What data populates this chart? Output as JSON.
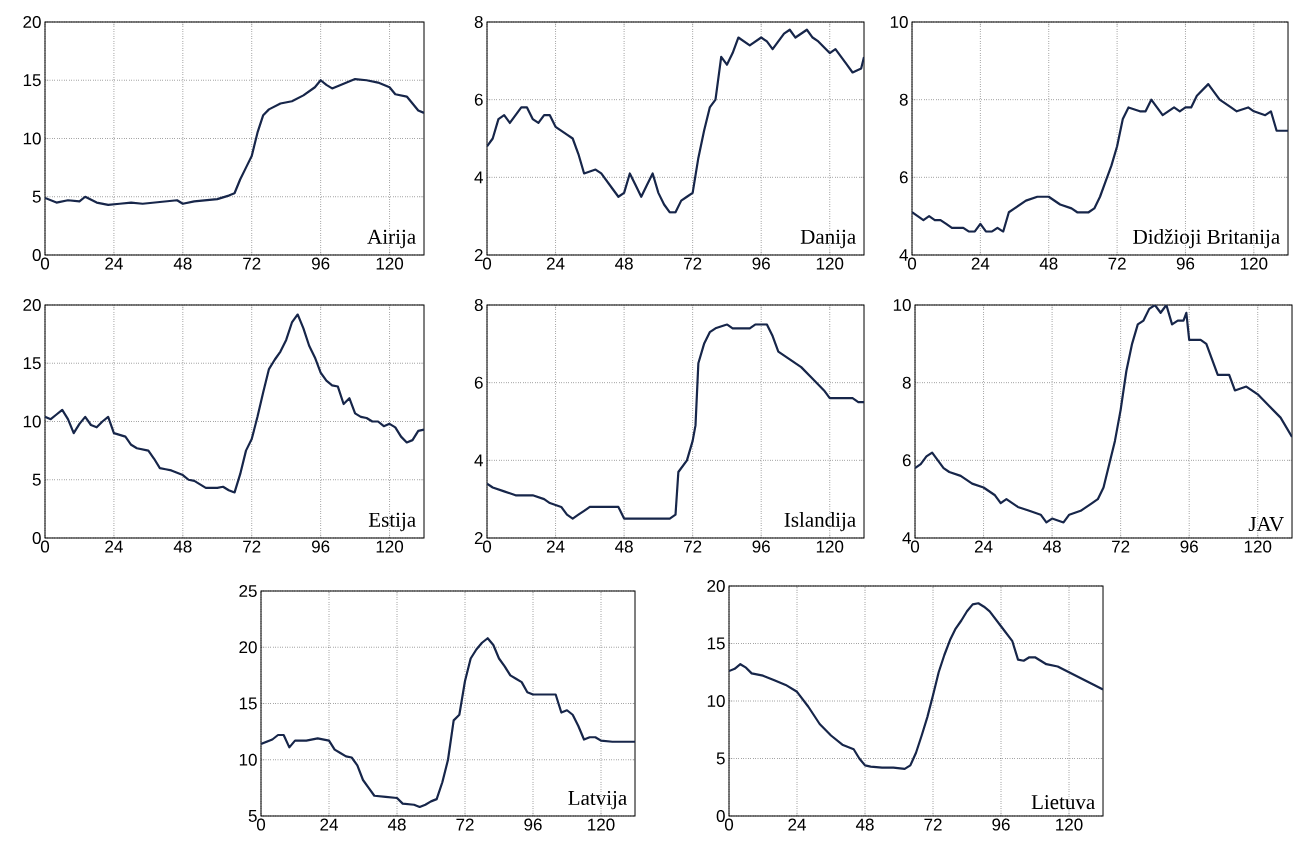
{
  "chart_data": [
    {
      "type": "line",
      "annotations": [
        "Airija"
      ],
      "color": "#17264a",
      "grid": true,
      "xlim": [
        0,
        132
      ],
      "xticks": [
        0,
        24,
        48,
        72,
        96,
        120
      ],
      "ylim": [
        0,
        20
      ],
      "yticks": [
        0,
        5,
        10,
        15,
        20
      ],
      "x": [
        0,
        4,
        8,
        12,
        14,
        18,
        22,
        26,
        30,
        34,
        38,
        42,
        46,
        48,
        52,
        56,
        60,
        64,
        66,
        68,
        70,
        72,
        74,
        76,
        78,
        82,
        86,
        90,
        94,
        96,
        98,
        100,
        104,
        108,
        112,
        116,
        120,
        122,
        126,
        128,
        130,
        132
      ],
      "values": [
        4.9,
        4.5,
        4.7,
        4.6,
        5.0,
        4.5,
        4.3,
        4.4,
        4.5,
        4.4,
        4.5,
        4.6,
        4.7,
        4.4,
        4.6,
        4.7,
        4.8,
        5.1,
        5.3,
        6.5,
        7.5,
        8.5,
        10.5,
        12,
        12.5,
        13,
        13.2,
        13.7,
        14.4,
        15,
        14.6,
        14.3,
        14.7,
        15.1,
        15,
        14.8,
        14.4,
        13.8,
        13.6,
        13,
        12.4,
        12.2
      ]
    },
    {
      "type": "line",
      "annotations": [
        "Danija"
      ],
      "color": "#17264a",
      "grid": true,
      "xlim": [
        0,
        132
      ],
      "xticks": [
        0,
        24,
        48,
        72,
        96,
        120
      ],
      "ylim": [
        2,
        8
      ],
      "yticks": [
        2,
        4,
        6,
        8
      ],
      "x": [
        0,
        2,
        4,
        6,
        8,
        10,
        12,
        14,
        16,
        18,
        20,
        22,
        24,
        28,
        30,
        32,
        34,
        38,
        40,
        44,
        46,
        48,
        50,
        52,
        54,
        56,
        58,
        60,
        62,
        64,
        66,
        68,
        70,
        72,
        74,
        76,
        78,
        80,
        82,
        84,
        86,
        88,
        92,
        96,
        98,
        100,
        104,
        106,
        108,
        112,
        114,
        116,
        120,
        122,
        126,
        128,
        131,
        132
      ],
      "values": [
        4.8,
        5.0,
        5.5,
        5.6,
        5.4,
        5.6,
        5.8,
        5.8,
        5.5,
        5.4,
        5.6,
        5.6,
        5.3,
        5.1,
        5.0,
        4.6,
        4.1,
        4.2,
        4.1,
        3.7,
        3.5,
        3.6,
        4.1,
        3.8,
        3.5,
        3.8,
        4.1,
        3.6,
        3.3,
        3.1,
        3.1,
        3.4,
        3.5,
        3.6,
        4.5,
        5.2,
        5.8,
        6.0,
        7.1,
        6.9,
        7.2,
        7.6,
        7.4,
        7.6,
        7.5,
        7.3,
        7.7,
        7.8,
        7.6,
        7.8,
        7.6,
        7.5,
        7.2,
        7.3,
        6.9,
        6.7,
        6.8,
        7.1
      ]
    },
    {
      "type": "line",
      "annotations": [
        "Didžioji Britanija"
      ],
      "color": "#17264a",
      "grid": true,
      "xlim": [
        0,
        132
      ],
      "xticks": [
        0,
        24,
        48,
        72,
        96,
        120
      ],
      "ylim": [
        4,
        10
      ],
      "yticks": [
        4,
        6,
        8,
        10
      ],
      "x": [
        0,
        2,
        4,
        6,
        8,
        10,
        12,
        14,
        18,
        20,
        22,
        24,
        26,
        28,
        30,
        32,
        34,
        36,
        40,
        44,
        48,
        52,
        56,
        58,
        62,
        64,
        66,
        68,
        70,
        72,
        74,
        76,
        80,
        82,
        84,
        86,
        88,
        90,
        92,
        94,
        96,
        98,
        100,
        104,
        106,
        108,
        112,
        114,
        118,
        120,
        124,
        126,
        128,
        132
      ],
      "values": [
        5.1,
        5.0,
        4.9,
        5.0,
        4.9,
        4.9,
        4.8,
        4.7,
        4.7,
        4.6,
        4.6,
        4.8,
        4.6,
        4.6,
        4.7,
        4.6,
        5.1,
        5.2,
        5.4,
        5.5,
        5.5,
        5.3,
        5.2,
        5.1,
        5.1,
        5.2,
        5.5,
        5.9,
        6.3,
        6.8,
        7.5,
        7.8,
        7.7,
        7.7,
        8.0,
        7.8,
        7.6,
        7.7,
        7.8,
        7.7,
        7.8,
        7.8,
        8.1,
        8.4,
        8.2,
        8.0,
        7.8,
        7.7,
        7.8,
        7.7,
        7.6,
        7.7,
        7.2,
        7.2
      ]
    },
    {
      "type": "line",
      "annotations": [
        "Estija"
      ],
      "color": "#17264a",
      "grid": true,
      "xlim": [
        0,
        132
      ],
      "xticks": [
        0,
        24,
        48,
        72,
        96,
        120
      ],
      "ylim": [
        0,
        20
      ],
      "yticks": [
        0,
        5,
        10,
        15,
        20
      ],
      "x": [
        0,
        2,
        4,
        6,
        8,
        10,
        12,
        14,
        16,
        18,
        20,
        22,
        24,
        28,
        30,
        32,
        36,
        38,
        40,
        42,
        44,
        46,
        48,
        50,
        52,
        56,
        60,
        62,
        64,
        66,
        68,
        70,
        72,
        74,
        76,
        78,
        80,
        82,
        84,
        86,
        88,
        90,
        92,
        94,
        96,
        98,
        100,
        102,
        104,
        106,
        108,
        110,
        112,
        114,
        116,
        118,
        120,
        122,
        124,
        126,
        128,
        130,
        132
      ],
      "values": [
        10.4,
        10.2,
        10.6,
        11.0,
        10.2,
        9.0,
        9.8,
        10.4,
        9.7,
        9.5,
        10.0,
        10.4,
        9.0,
        8.7,
        8.0,
        7.7,
        7.5,
        6.8,
        6.0,
        5.9,
        5.8,
        5.6,
        5.4,
        5.0,
        4.9,
        4.3,
        4.3,
        4.4,
        4.1,
        3.9,
        5.5,
        7.5,
        8.5,
        10.4,
        12.5,
        14.5,
        15.3,
        16.0,
        17.0,
        18.5,
        19.2,
        18.0,
        16.5,
        15.5,
        14.2,
        13.5,
        13.1,
        13.0,
        11.5,
        12.0,
        10.7,
        10.4,
        10.3,
        10.0,
        10.0,
        9.6,
        9.8,
        9.5,
        8.7,
        8.2,
        8.4,
        9.2,
        9.3
      ]
    },
    {
      "type": "line",
      "annotations": [
        "Islandija"
      ],
      "color": "#17264a",
      "grid": true,
      "xlim": [
        0,
        132
      ],
      "xticks": [
        0,
        24,
        48,
        72,
        96,
        120
      ],
      "ylim": [
        2,
        8
      ],
      "yticks": [
        2,
        4,
        6,
        8
      ],
      "x": [
        0,
        2,
        6,
        10,
        16,
        20,
        22,
        26,
        28,
        30,
        32,
        34,
        36,
        40,
        42,
        46,
        48,
        56,
        64,
        66,
        67,
        70,
        72,
        73,
        74,
        76,
        78,
        80,
        84,
        86,
        92,
        94,
        98,
        100,
        102,
        106,
        110,
        114,
        118,
        120,
        124,
        128,
        130,
        132
      ],
      "values": [
        3.4,
        3.3,
        3.2,
        3.1,
        3.1,
        3.0,
        2.9,
        2.8,
        2.6,
        2.5,
        2.6,
        2.7,
        2.8,
        2.8,
        2.8,
        2.8,
        2.5,
        2.5,
        2.5,
        2.6,
        3.7,
        4.0,
        4.5,
        4.9,
        6.5,
        7.0,
        7.3,
        7.4,
        7.5,
        7.4,
        7.4,
        7.5,
        7.5,
        7.2,
        6.8,
        6.6,
        6.4,
        6.1,
        5.8,
        5.6,
        5.6,
        5.6,
        5.5,
        5.5
      ]
    },
    {
      "type": "line",
      "annotations": [
        "JAV"
      ],
      "color": "#17264a",
      "grid": true,
      "xlim": [
        0,
        132
      ],
      "xticks": [
        0,
        24,
        48,
        72,
        96,
        120
      ],
      "ylim": [
        4,
        10
      ],
      "yticks": [
        4,
        6,
        8,
        10
      ],
      "x": [
        0,
        2,
        4,
        6,
        8,
        10,
        12,
        16,
        20,
        24,
        28,
        30,
        32,
        36,
        40,
        44,
        46,
        48,
        52,
        54,
        58,
        62,
        64,
        66,
        68,
        70,
        72,
        74,
        76,
        78,
        80,
        82,
        84,
        86,
        88,
        90,
        92,
        94,
        95,
        96,
        100,
        102,
        104,
        106,
        110,
        112,
        116,
        120,
        124,
        128,
        132
      ],
      "values": [
        5.8,
        5.9,
        6.1,
        6.2,
        6.0,
        5.8,
        5.7,
        5.6,
        5.4,
        5.3,
        5.1,
        4.9,
        5.0,
        4.8,
        4.7,
        4.6,
        4.4,
        4.5,
        4.4,
        4.6,
        4.7,
        4.9,
        5.0,
        5.3,
        5.9,
        6.5,
        7.3,
        8.3,
        9.0,
        9.5,
        9.6,
        9.9,
        10.0,
        9.8,
        10.0,
        9.5,
        9.6,
        9.6,
        9.8,
        9.1,
        9.1,
        9.0,
        8.6,
        8.2,
        8.2,
        7.8,
        7.9,
        7.7,
        7.4,
        7.1,
        6.6
      ]
    },
    {
      "type": "line",
      "annotations": [
        "Latvija"
      ],
      "color": "#17264a",
      "grid": true,
      "xlim": [
        0,
        132
      ],
      "xticks": [
        0,
        24,
        48,
        72,
        96,
        120
      ],
      "ylim": [
        5,
        25
      ],
      "yticks": [
        5,
        10,
        15,
        20,
        25
      ],
      "x": [
        0,
        4,
        6,
        8,
        10,
        12,
        16,
        20,
        24,
        26,
        28,
        30,
        32,
        34,
        36,
        38,
        40,
        44,
        48,
        50,
        54,
        56,
        58,
        60,
        62,
        64,
        66,
        68,
        70,
        72,
        74,
        76,
        78,
        80,
        82,
        84,
        86,
        88,
        90,
        92,
        94,
        96,
        100,
        104,
        106,
        108,
        110,
        112,
        114,
        116,
        118,
        120,
        124,
        132
      ],
      "values": [
        11.4,
        11.8,
        12.2,
        12.2,
        11.1,
        11.7,
        11.7,
        11.9,
        11.7,
        10.9,
        10.6,
        10.3,
        10.2,
        9.5,
        8.2,
        7.5,
        6.8,
        6.7,
        6.6,
        6.1,
        6.0,
        5.8,
        6.0,
        6.3,
        6.5,
        8.0,
        10.0,
        13.5,
        14.0,
        17.0,
        19.0,
        19.8,
        20.4,
        20.8,
        20.2,
        19.0,
        18.3,
        17.5,
        17.2,
        16.9,
        16.0,
        15.8,
        15.8,
        15.8,
        14.2,
        14.4,
        14.0,
        13.0,
        11.8,
        12.0,
        12.0,
        11.7,
        11.6,
        11.6
      ]
    },
    {
      "type": "line",
      "annotations": [
        "Lietuva"
      ],
      "color": "#17264a",
      "grid": true,
      "xlim": [
        0,
        132
      ],
      "xticks": [
        0,
        24,
        48,
        72,
        96,
        120
      ],
      "ylim": [
        0,
        20
      ],
      "yticks": [
        0,
        5,
        10,
        15,
        20
      ],
      "x": [
        0,
        2,
        4,
        6,
        8,
        12,
        16,
        20,
        24,
        28,
        32,
        36,
        40,
        44,
        46,
        48,
        50,
        54,
        58,
        62,
        64,
        66,
        68,
        70,
        72,
        74,
        76,
        78,
        80,
        82,
        84,
        86,
        88,
        90,
        92,
        96,
        100,
        102,
        104,
        106,
        108,
        110,
        112,
        116,
        120,
        124,
        128,
        132
      ],
      "values": [
        12.6,
        12.8,
        13.2,
        12.9,
        12.4,
        12.2,
        11.8,
        11.4,
        10.8,
        9.5,
        8.0,
        7.0,
        6.2,
        5.8,
        5.0,
        4.4,
        4.3,
        4.2,
        4.2,
        4.1,
        4.4,
        5.5,
        7.0,
        8.6,
        10.5,
        12.5,
        14.0,
        15.3,
        16.3,
        17.0,
        17.8,
        18.4,
        18.5,
        18.2,
        17.8,
        16.5,
        15.2,
        13.6,
        13.5,
        13.8,
        13.8,
        13.5,
        13.2,
        13.0,
        12.5,
        12.0,
        11.5,
        11.0
      ]
    }
  ]
}
